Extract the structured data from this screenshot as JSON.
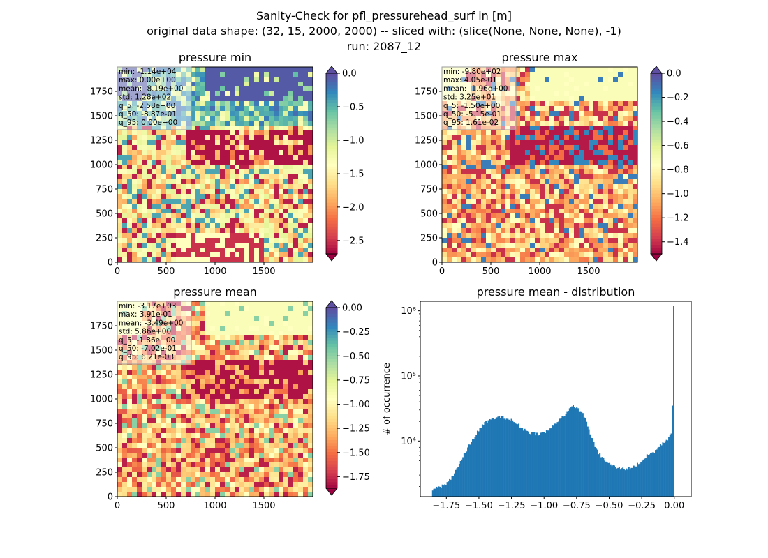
{
  "figure": {
    "title_lines": [
      "Sanity-Check for pfl_pressurehead_surf in [m]",
      "original data shape: (32, 15, 2000, 2000) -- sliced with: (slice(None, None, None), -1)",
      "run: 2087_12"
    ]
  },
  "chart_data": [
    {
      "type": "heatmap",
      "title": "pressure min",
      "xlim": [
        0,
        2000
      ],
      "ylim": [
        0,
        2000
      ],
      "x_ticks": [
        "0",
        "500",
        "1000",
        "1500"
      ],
      "y_ticks": [
        "0",
        "250",
        "500",
        "750",
        "1000",
        "1250",
        "1500",
        "1750"
      ],
      "colormap": "Spectral",
      "colorbar": {
        "min": -2.7,
        "max": 0.0,
        "extend": "both",
        "ticks": [
          "0.0",
          "−0.5",
          "−1.0",
          "−1.5",
          "−2.0",
          "−2.5"
        ],
        "tick_values": [
          0.0,
          -0.5,
          -1.0,
          -1.5,
          -2.0,
          -2.5
        ]
      },
      "stats": [
        "min: -1.14e+04",
        "max: 0.00e+00",
        "mean: -8.19e+00",
        "std: 1.28e+02",
        "q_5: -2.58e+00",
        "q_50: -8.87e-01",
        "q_95: 0.00e+00"
      ]
    },
    {
      "type": "heatmap",
      "title": "pressure max",
      "xlim": [
        0,
        2000
      ],
      "ylim": [
        0,
        2000
      ],
      "x_ticks": [
        "0",
        "500",
        "1000",
        "1500"
      ],
      "y_ticks": [
        "0",
        "250",
        "500",
        "750",
        "1000",
        "1250",
        "1500",
        "1750"
      ],
      "colormap": "Spectral",
      "colorbar": {
        "min": -1.5,
        "max": 0.0,
        "extend": "both",
        "ticks": [
          "0.0",
          "−0.2",
          "−0.4",
          "−0.6",
          "−0.8",
          "−1.0",
          "−1.2",
          "−1.4"
        ],
        "tick_values": [
          0.0,
          -0.2,
          -0.4,
          -0.6,
          -0.8,
          -1.0,
          -1.2,
          -1.4
        ]
      },
      "stats": [
        "min: -9.80e+02",
        "max: 4.05e-01",
        "mean: -1.96e+00",
        "std: 3.25e+01",
        "q_5: -1.50e+00",
        "q_50: -5.15e-01",
        "q_95: 1.61e-02"
      ]
    },
    {
      "type": "heatmap",
      "title": "pressure mean",
      "xlim": [
        0,
        2000
      ],
      "ylim": [
        0,
        2000
      ],
      "x_ticks": [
        "0",
        "500",
        "1000",
        "1500"
      ],
      "y_ticks": [
        "0",
        "250",
        "500",
        "750",
        "1000",
        "1250",
        "1500",
        "1750"
      ],
      "colormap": "Spectral",
      "colorbar": {
        "min": -1.87,
        "max": 0.0,
        "extend": "both",
        "ticks": [
          "0.00",
          "−0.25",
          "−0.50",
          "−0.75",
          "−1.00",
          "−1.25",
          "−1.50",
          "−1.75"
        ],
        "tick_values": [
          0.0,
          -0.25,
          -0.5,
          -0.75,
          -1.0,
          -1.25,
          -1.5,
          -1.75
        ]
      },
      "stats": [
        "min: -3.17e+03",
        "max: 3.91e-01",
        "mean: -3.49e+00",
        "std: 5.86e+00",
        "q_5: -1.86e+00",
        "q_50: -7.02e-01",
        "q_95: 6.21e-03"
      ]
    },
    {
      "type": "bar",
      "title": "pressure mean - distribution",
      "ylabel": "# of occurrence",
      "yscale": "log",
      "xlim": [
        -1.95,
        0.13
      ],
      "ylim": [
        1400,
        1400000
      ],
      "x_ticks": [
        "−1.75",
        "−1.50",
        "−1.25",
        "−1.00",
        "−0.75",
        "−0.50",
        "−0.25",
        "0.00"
      ],
      "x_tick_values": [
        -1.75,
        -1.5,
        -1.25,
        -1.0,
        -0.75,
        -0.5,
        -0.25,
        0.0
      ],
      "y_ticks": [
        "10⁴",
        "10⁵",
        "10⁶"
      ],
      "y_tick_values": [
        10000,
        100000,
        1000000
      ],
      "bar_color": "#1f77b4",
      "curve": [
        [
          -1.86,
          1800
        ],
        [
          -1.8,
          2000
        ],
        [
          -1.75,
          2200
        ],
        [
          -1.7,
          3000
        ],
        [
          -1.65,
          4500
        ],
        [
          -1.6,
          7000
        ],
        [
          -1.55,
          10500
        ],
        [
          -1.5,
          15000
        ],
        [
          -1.45,
          19500
        ],
        [
          -1.4,
          22000
        ],
        [
          -1.35,
          23500
        ],
        [
          -1.3,
          23000
        ],
        [
          -1.25,
          21000
        ],
        [
          -1.2,
          18000
        ],
        [
          -1.15,
          15000
        ],
        [
          -1.1,
          13500
        ],
        [
          -1.05,
          13000
        ],
        [
          -1.0,
          13500
        ],
        [
          -0.95,
          15500
        ],
        [
          -0.9,
          20000
        ],
        [
          -0.85,
          25000
        ],
        [
          -0.8,
          31000
        ],
        [
          -0.77,
          36000
        ],
        [
          -0.74,
          31000
        ],
        [
          -0.7,
          27000
        ],
        [
          -0.65,
          14000
        ],
        [
          -0.6,
          7500
        ],
        [
          -0.55,
          5500
        ],
        [
          -0.5,
          4500
        ],
        [
          -0.45,
          4000
        ],
        [
          -0.4,
          3800
        ],
        [
          -0.35,
          3800
        ],
        [
          -0.3,
          4200
        ],
        [
          -0.25,
          5000
        ],
        [
          -0.2,
          6200
        ],
        [
          -0.15,
          7000
        ],
        [
          -0.1,
          9000
        ],
        [
          -0.05,
          11000
        ],
        [
          -0.02,
          14000
        ],
        [
          -0.01,
          35000
        ],
        [
          0.0,
          1200000
        ]
      ]
    }
  ]
}
